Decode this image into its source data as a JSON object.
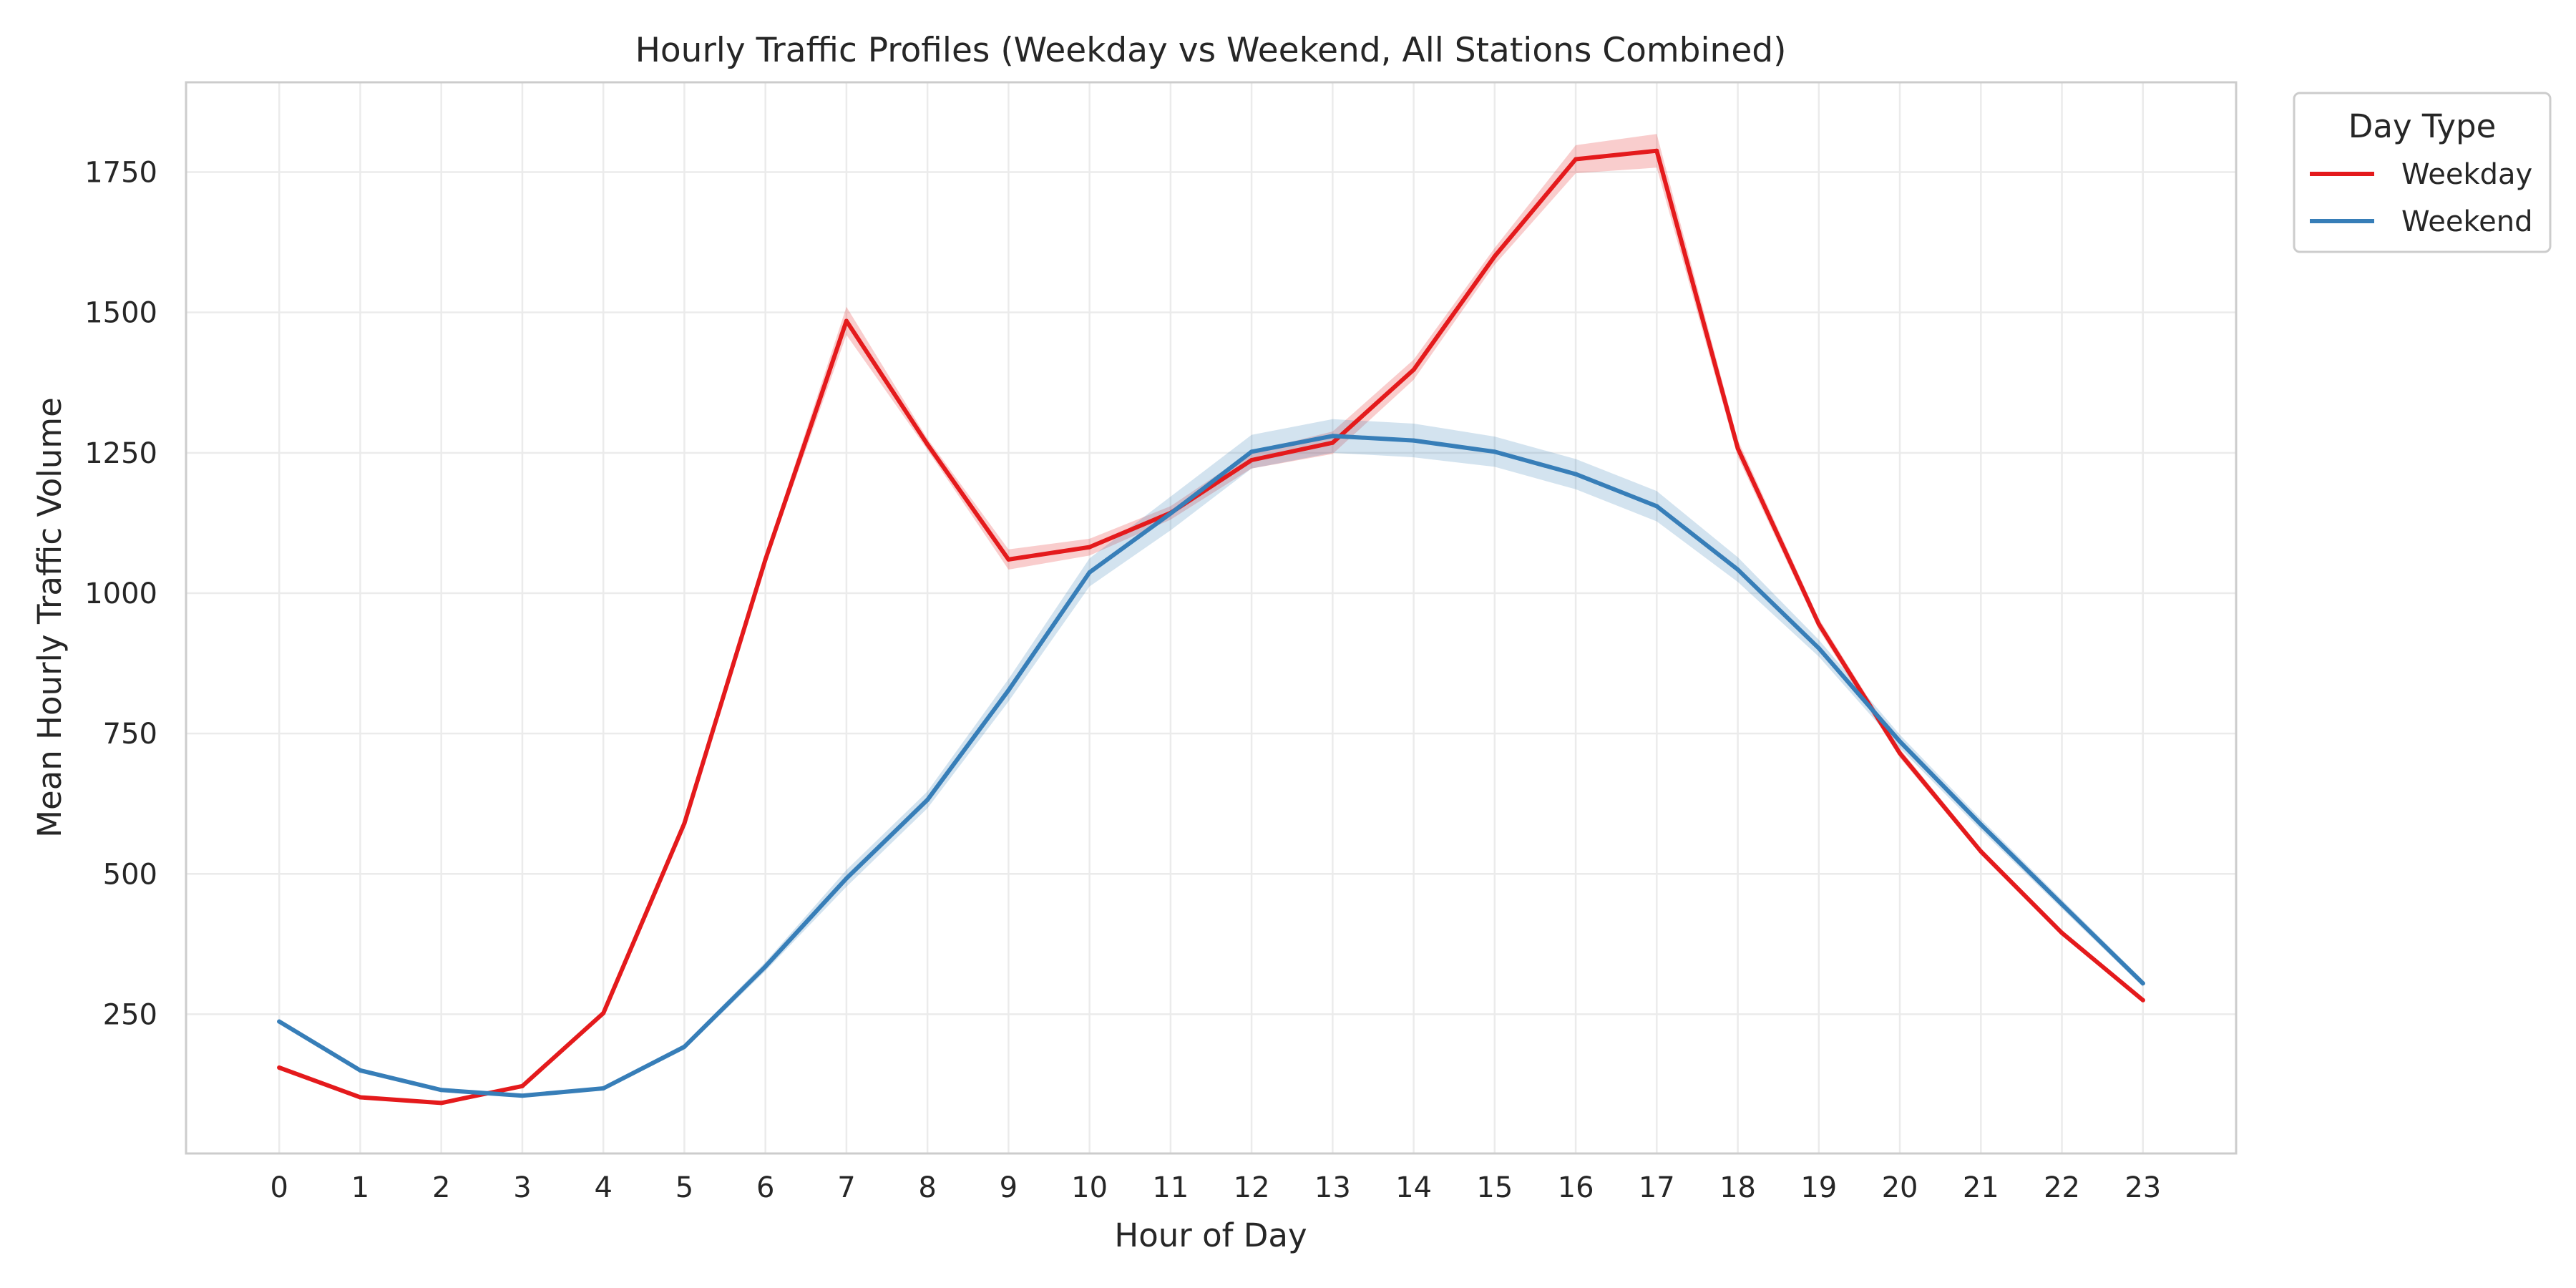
{
  "chart_data": {
    "type": "line",
    "title": "Hourly Traffic Profiles (Weekday vs Weekend, All Stations Combined)",
    "xlabel": "Hour of Day",
    "ylabel": "Mean Hourly Traffic Volume",
    "x": [
      0,
      1,
      2,
      3,
      4,
      5,
      6,
      7,
      8,
      9,
      10,
      11,
      12,
      13,
      14,
      15,
      16,
      17,
      18,
      19,
      20,
      21,
      22,
      23
    ],
    "xticks": [
      "0",
      "1",
      "2",
      "3",
      "4",
      "5",
      "6",
      "7",
      "8",
      "9",
      "10",
      "11",
      "12",
      "13",
      "14",
      "15",
      "16",
      "17",
      "18",
      "19",
      "20",
      "21",
      "22",
      "23"
    ],
    "yticks": [
      "250",
      "500",
      "750",
      "1000",
      "1250",
      "1500",
      "1750"
    ],
    "ytick_values": [
      250,
      500,
      750,
      1000,
      1250,
      1500,
      1750
    ],
    "xlim": [
      -1.15,
      24.15
    ],
    "ylim": [
      2,
      1910
    ],
    "grid": true,
    "legend": {
      "title": "Day Type",
      "placement": "outside top-right"
    },
    "series": [
      {
        "name": "Weekday",
        "color": "#e41a1c",
        "values": [
          155,
          102,
          92,
          122,
          252,
          590,
          1060,
          1485,
          1265,
          1060,
          1082,
          1143,
          1237,
          1268,
          1398,
          1600,
          1773,
          1788,
          1258,
          945,
          715,
          540,
          395,
          275
        ],
        "ci_half_width": [
          3,
          3,
          3,
          3,
          4,
          5,
          8,
          25,
          10,
          18,
          15,
          12,
          15,
          20,
          18,
          15,
          25,
          30,
          15,
          10,
          8,
          6,
          5,
          4
        ]
      },
      {
        "name": "Weekend",
        "color": "#377eb8",
        "values": [
          237,
          150,
          115,
          105,
          118,
          192,
          335,
          492,
          632,
          827,
          1037,
          1142,
          1252,
          1280,
          1272,
          1252,
          1212,
          1155,
          1042,
          902,
          736,
          588,
          446,
          305
        ],
        "ci_half_width": [
          4,
          4,
          3,
          3,
          3,
          5,
          8,
          15,
          15,
          20,
          25,
          30,
          30,
          30,
          30,
          27,
          27,
          27,
          22,
          15,
          12,
          10,
          8,
          6
        ]
      }
    ]
  }
}
